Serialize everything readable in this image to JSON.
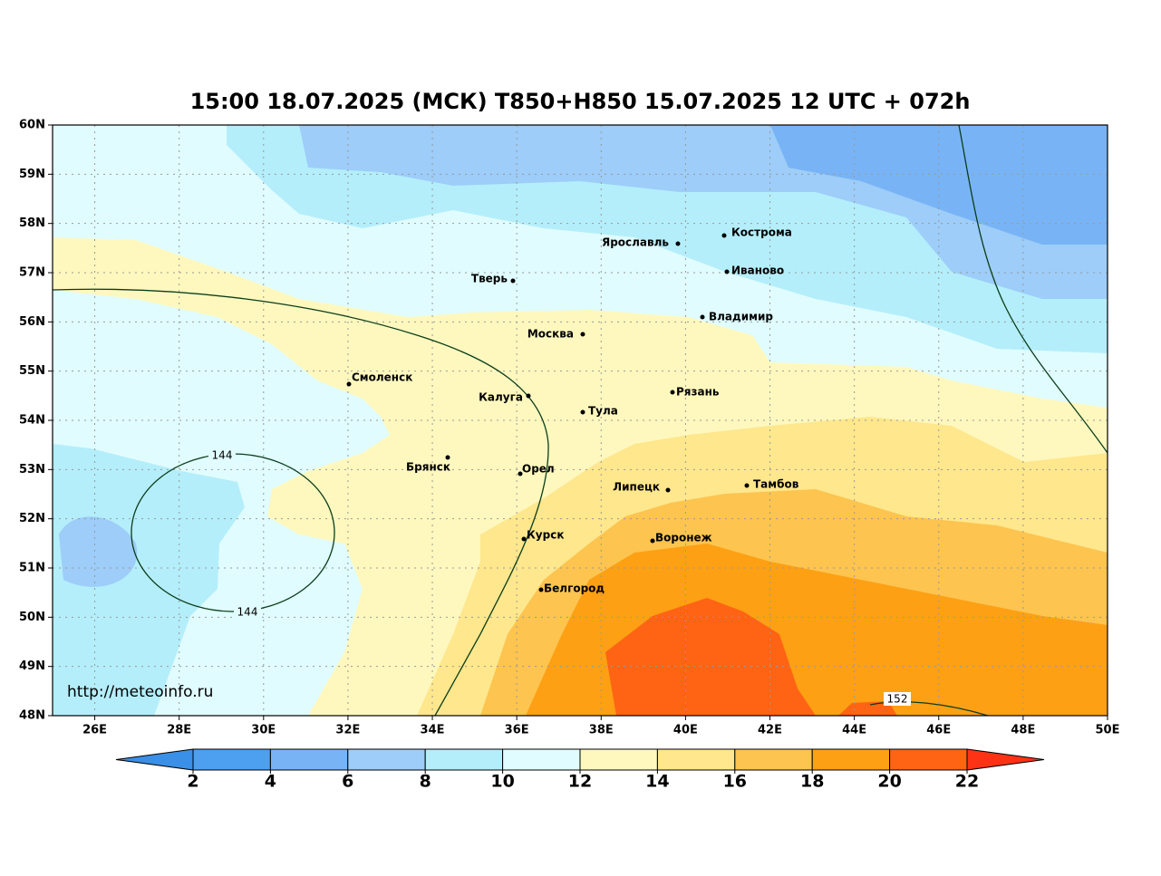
{
  "title": "15:00 18.07.2025 (МСК) T850+H850 15.07.2025 12 UTC + 072h",
  "map": {
    "xlim": [
      25,
      50
    ],
    "ylim": [
      48,
      60
    ],
    "xticks": [
      {
        "value": 26,
        "label": "26E"
      },
      {
        "value": 28,
        "label": "28E"
      },
      {
        "value": 30,
        "label": "30E"
      },
      {
        "value": 32,
        "label": "32E"
      },
      {
        "value": 34,
        "label": "34E"
      },
      {
        "value": 36,
        "label": "36E"
      },
      {
        "value": 38,
        "label": "38E"
      },
      {
        "value": 40,
        "label": "40E"
      },
      {
        "value": 42,
        "label": "42E"
      },
      {
        "value": 44,
        "label": "44E"
      },
      {
        "value": 46,
        "label": "46E"
      },
      {
        "value": 48,
        "label": "48E"
      },
      {
        "value": 50,
        "label": "50E"
      }
    ],
    "yticks": [
      {
        "value": 48,
        "label": "48N"
      },
      {
        "value": 49,
        "label": "49N"
      },
      {
        "value": 50,
        "label": "50N"
      },
      {
        "value": 51,
        "label": "51N"
      },
      {
        "value": 52,
        "label": "52N"
      },
      {
        "value": 53,
        "label": "53N"
      },
      {
        "value": 54,
        "label": "54N"
      },
      {
        "value": 55,
        "label": "55N"
      },
      {
        "value": 56,
        "label": "56N"
      },
      {
        "value": 57,
        "label": "57N"
      },
      {
        "value": 58,
        "label": "58N"
      },
      {
        "value": 59,
        "label": "59N"
      },
      {
        "value": 60,
        "label": "60N"
      }
    ],
    "grid": true,
    "cities": [
      "Ярославль",
      "Кострома",
      "Иваново",
      "Тверь",
      "Владимир",
      "Москва",
      "Смоленск",
      "Калуга",
      "Рязань",
      "Тула",
      "Брянск",
      "Орел",
      "Липецк",
      "Тамбов",
      "Курск",
      "Воронеж",
      "Белгород"
    ],
    "contour_labels": [
      144,
      144,
      152
    ],
    "watermark": "http://meteoinfo.ru"
  },
  "colorbar": {
    "ticks": [
      2,
      4,
      6,
      8,
      10,
      12,
      14,
      16,
      18,
      20,
      22
    ],
    "colors": [
      "#3a8fe6",
      "#4d9ff0",
      "#78b4f5",
      "#9dcdf8",
      "#b4eefa",
      "#e0fcfe",
      "#fef8be",
      "#fee78c",
      "#fdc44f",
      "#fda014",
      "#fe6414",
      "#fe3214"
    ]
  }
}
